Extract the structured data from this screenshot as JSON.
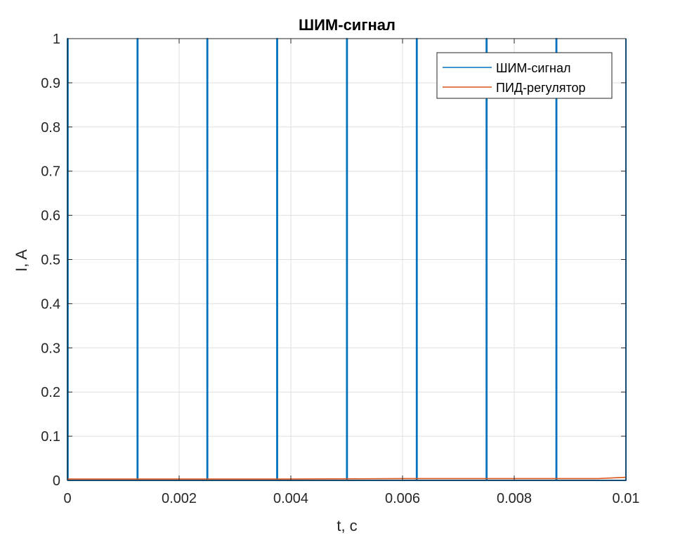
{
  "chart_data": {
    "type": "line",
    "title": "ШИМ-сигнал",
    "xlabel": "t, c",
    "ylabel": "I, A",
    "xlim": [
      0,
      0.01
    ],
    "ylim": [
      0,
      1
    ],
    "xticks": [
      0,
      0.002,
      0.004,
      0.006,
      0.008,
      0.01
    ],
    "xtick_labels": [
      "0",
      "0.002",
      "0.004",
      "0.006",
      "0.008",
      "0.01"
    ],
    "yticks": [
      0,
      0.1,
      0.2,
      0.3,
      0.4,
      0.5,
      0.6,
      0.7,
      0.8,
      0.9,
      1
    ],
    "ytick_labels": [
      "0",
      "0.1",
      "0.2",
      "0.3",
      "0.4",
      "0.5",
      "0.6",
      "0.7",
      "0.8",
      "0.9",
      "1"
    ],
    "grid": true,
    "legend_position": "top-right",
    "series": [
      {
        "name": "ШИМ-сигнал",
        "color": "#0072BD",
        "x": [
          0,
          0,
          1e-05,
          1e-05,
          0.00125,
          0.00125,
          0.00126,
          0.00126,
          0.0025,
          0.0025,
          0.00251,
          0.00251,
          0.00375,
          0.00375,
          0.00376,
          0.00376,
          0.005,
          0.005,
          0.00501,
          0.00501,
          0.00625,
          0.00625,
          0.00626,
          0.00626,
          0.0075,
          0.0075,
          0.00751,
          0.00751,
          0.00875,
          0.00875,
          0.00876,
          0.00876,
          0.01,
          0.01
        ],
        "y": [
          0,
          1,
          1,
          0,
          0,
          1,
          1,
          0,
          0,
          1,
          1,
          0,
          0,
          1,
          1,
          0,
          0,
          1,
          1,
          0,
          0,
          1,
          1,
          0,
          0,
          1,
          1,
          0,
          0,
          1,
          1,
          0,
          0,
          1
        ]
      },
      {
        "name": "ПИД-регулятор",
        "color": "#D95319",
        "x": [
          0,
          0.002,
          0.004,
          0.006,
          0.008,
          0.0095,
          0.01
        ],
        "y": [
          0.003,
          0.003,
          0.003,
          0.004,
          0.004,
          0.004,
          0.007
        ]
      }
    ]
  },
  "colors": {
    "axis": "#262626",
    "grid": "#dfdfdf",
    "background": "#ffffff"
  }
}
